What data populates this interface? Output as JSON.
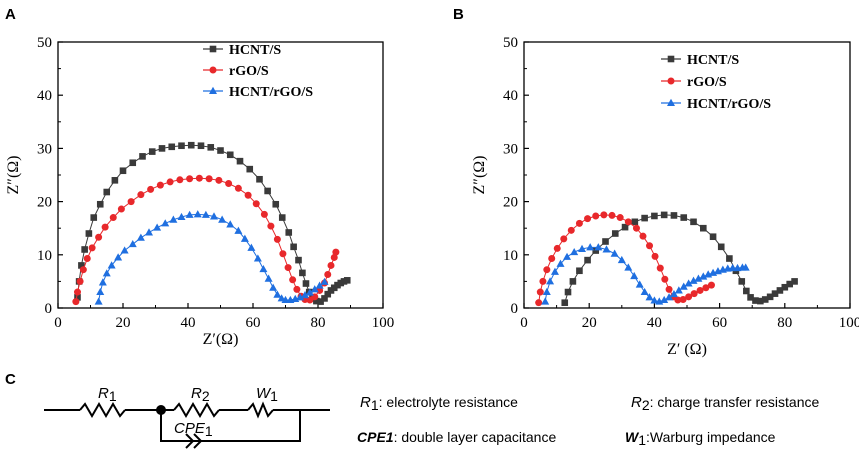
{
  "panels": {
    "A": "A",
    "B": "B",
    "C": "C"
  },
  "colors": {
    "HCNT/S": "#3a3a3a",
    "rGO/S": "#e8282b",
    "HCNT/rGO/S": "#1f6fe0"
  },
  "chart_data": [
    {
      "panel": "A",
      "type": "scatter",
      "xlabel": "Z′(Ω)",
      "ylabel": "Z″(Ω)",
      "xlim": [
        0,
        100
      ],
      "ylim": [
        0,
        50
      ],
      "xticks": [
        "0",
        "20",
        "40",
        "60",
        "80",
        "100"
      ],
      "yticks": [
        "0",
        "10",
        "20",
        "30",
        "40",
        "50"
      ],
      "legend_position": "top-right",
      "series": [
        {
          "name": "HCNT/S",
          "marker": "square",
          "points": [
            [
              6,
              2
            ],
            [
              6.5,
              5
            ],
            [
              7.2,
              8
            ],
            [
              8.2,
              11
            ],
            [
              9.5,
              14
            ],
            [
              11,
              17
            ],
            [
              13,
              19.5
            ],
            [
              15,
              21.8
            ],
            [
              17.5,
              24
            ],
            [
              20,
              25.8
            ],
            [
              23,
              27.3
            ],
            [
              26,
              28.5
            ],
            [
              29,
              29.4
            ],
            [
              32,
              30
            ],
            [
              35,
              30.3
            ],
            [
              38,
              30.5
            ],
            [
              41,
              30.6
            ],
            [
              44,
              30.5
            ],
            [
              47,
              30.2
            ],
            [
              50,
              29.6
            ],
            [
              53,
              28.8
            ],
            [
              56,
              27.6
            ],
            [
              59,
              26.1
            ],
            [
              62,
              24.2
            ],
            [
              64.5,
              22
            ],
            [
              67,
              19.5
            ],
            [
              69,
              17
            ],
            [
              71,
              14.2
            ],
            [
              72.5,
              11.5
            ],
            [
              74,
              9
            ],
            [
              75.2,
              6.6
            ],
            [
              76.3,
              4.6
            ],
            [
              77.3,
              3
            ],
            [
              78.3,
              1.8
            ],
            [
              79.5,
              1.3
            ],
            [
              80.8,
              1.2
            ],
            [
              82,
              1.8
            ],
            [
              83,
              2.6
            ],
            [
              84,
              3.3
            ],
            [
              85,
              3.8
            ],
            [
              86,
              4.3
            ],
            [
              87,
              4.7
            ],
            [
              88,
              5
            ],
            [
              89,
              5.2
            ]
          ]
        },
        {
          "name": "rGO/S",
          "marker": "circle",
          "points": [
            [
              5.5,
              1.2
            ],
            [
              6,
              3
            ],
            [
              6.8,
              5
            ],
            [
              7.8,
              7.2
            ],
            [
              9,
              9.3
            ],
            [
              10.5,
              11.3
            ],
            [
              12.5,
              13.3
            ],
            [
              14.5,
              15.2
            ],
            [
              17,
              17
            ],
            [
              19.5,
              18.6
            ],
            [
              22.5,
              20
            ],
            [
              25.5,
              21.3
            ],
            [
              28.5,
              22.3
            ],
            [
              31.5,
              23.1
            ],
            [
              34.5,
              23.7
            ],
            [
              37.5,
              24.1
            ],
            [
              40.5,
              24.3
            ],
            [
              43.5,
              24.4
            ],
            [
              46.5,
              24.3
            ],
            [
              49.5,
              24
            ],
            [
              52.5,
              23.4
            ],
            [
              55.5,
              22.5
            ],
            [
              58.5,
              21.2
            ],
            [
              61,
              19.6
            ],
            [
              63.5,
              17.6
            ],
            [
              65.5,
              15.4
            ],
            [
              67.5,
              12.9
            ],
            [
              69.2,
              10.2
            ],
            [
              70.8,
              7.6
            ],
            [
              72.2,
              5.3
            ],
            [
              73.5,
              3.5
            ],
            [
              74.8,
              2.2
            ],
            [
              76,
              1.6
            ],
            [
              77.5,
              1.5
            ],
            [
              79,
              2.1
            ],
            [
              80.5,
              3.3
            ],
            [
              82,
              4.7
            ],
            [
              83,
              6.3
            ],
            [
              84,
              8
            ],
            [
              85,
              9.5
            ],
            [
              85.5,
              10.5
            ]
          ]
        },
        {
          "name": "HCNT/rGO/S",
          "marker": "triangle",
          "points": [
            [
              12.5,
              1.2
            ],
            [
              13,
              3
            ],
            [
              13.8,
              4.8
            ],
            [
              15,
              6.5
            ],
            [
              16.5,
              8
            ],
            [
              18.5,
              9.5
            ],
            [
              20.5,
              10.8
            ],
            [
              23,
              12
            ],
            [
              25.5,
              13.2
            ],
            [
              28,
              14.2
            ],
            [
              30.5,
              15.1
            ],
            [
              33,
              15.9
            ],
            [
              35.5,
              16.6
            ],
            [
              38,
              17.1
            ],
            [
              40.5,
              17.5
            ],
            [
              43,
              17.6
            ],
            [
              45.5,
              17.5
            ],
            [
              48,
              17.2
            ],
            [
              50.5,
              16.6
            ],
            [
              53,
              15.7
            ],
            [
              55.5,
              14.5
            ],
            [
              57.5,
              13
            ],
            [
              59.5,
              11.3
            ],
            [
              61.5,
              9.3
            ],
            [
              63.2,
              7.3
            ],
            [
              64.8,
              5.5
            ],
            [
              66.2,
              3.8
            ],
            [
              67.5,
              2.5
            ],
            [
              68.8,
              1.8
            ],
            [
              70,
              1.5
            ],
            [
              71.5,
              1.5
            ],
            [
              73,
              1.7
            ],
            [
              74.5,
              2
            ],
            [
              76,
              2.4
            ],
            [
              77.5,
              2.9
            ],
            [
              79,
              3.5
            ],
            [
              80.5,
              4.2
            ],
            [
              82,
              4.9
            ]
          ]
        }
      ]
    },
    {
      "panel": "B",
      "type": "scatter",
      "xlabel": "Z′ (Ω)",
      "ylabel": "Z″(Ω)",
      "xlim": [
        0,
        100
      ],
      "ylim": [
        0,
        50
      ],
      "xticks": [
        "0",
        "20",
        "40",
        "60",
        "80",
        "100"
      ],
      "yticks": [
        "0",
        "10",
        "20",
        "30",
        "40",
        "50"
      ],
      "legend_position": "top-right",
      "series": [
        {
          "name": "HCNT/S",
          "marker": "square",
          "points": [
            [
              12.5,
              1
            ],
            [
              13.5,
              3
            ],
            [
              15,
              5
            ],
            [
              17,
              7
            ],
            [
              19.5,
              9
            ],
            [
              22,
              10.8
            ],
            [
              25,
              12.5
            ],
            [
              28,
              14
            ],
            [
              31,
              15.2
            ],
            [
              34,
              16.2
            ],
            [
              37,
              16.9
            ],
            [
              40,
              17.3
            ],
            [
              43,
              17.5
            ],
            [
              46,
              17.4
            ],
            [
              49,
              17
            ],
            [
              52,
              16.2
            ],
            [
              55,
              15
            ],
            [
              58,
              13.4
            ],
            [
              60.5,
              11.5
            ],
            [
              63,
              9.3
            ],
            [
              65,
              7
            ],
            [
              66.8,
              5
            ],
            [
              68.2,
              3.2
            ],
            [
              69.5,
              2
            ],
            [
              71,
              1.4
            ],
            [
              72.5,
              1.3
            ],
            [
              74,
              1.6
            ],
            [
              75.5,
              2.1
            ],
            [
              77,
              2.7
            ],
            [
              78.5,
              3.3
            ],
            [
              80,
              3.9
            ],
            [
              81.5,
              4.5
            ],
            [
              83,
              5
            ]
          ]
        },
        {
          "name": "rGO/S",
          "marker": "circle",
          "points": [
            [
              4.5,
              1
            ],
            [
              5,
              3
            ],
            [
              5.8,
              5
            ],
            [
              7,
              7.2
            ],
            [
              8.5,
              9.3
            ],
            [
              10.2,
              11.2
            ],
            [
              12.2,
              13
            ],
            [
              14.5,
              14.6
            ],
            [
              17,
              15.9
            ],
            [
              19.5,
              16.8
            ],
            [
              22,
              17.3
            ],
            [
              24.5,
              17.5
            ],
            [
              27,
              17.4
            ],
            [
              29.5,
              17
            ],
            [
              32,
              16.2
            ],
            [
              34.5,
              15
            ],
            [
              36.5,
              13.5
            ],
            [
              38.5,
              11.7
            ],
            [
              40.2,
              9.7
            ],
            [
              41.8,
              7.5
            ],
            [
              43.2,
              5.4
            ],
            [
              44.5,
              3.5
            ],
            [
              45.8,
              2.1
            ],
            [
              47.2,
              1.5
            ],
            [
              48.8,
              1.6
            ],
            [
              50.5,
              2.1
            ],
            [
              52.2,
              2.7
            ],
            [
              54,
              3.3
            ],
            [
              55.8,
              3.8
            ],
            [
              57.5,
              4.3
            ]
          ]
        },
        {
          "name": "HCNT/rGO/S",
          "marker": "triangle",
          "points": [
            [
              6.5,
              1.2
            ],
            [
              7,
              3
            ],
            [
              8,
              5
            ],
            [
              9.5,
              6.8
            ],
            [
              11.2,
              8.3
            ],
            [
              13.2,
              9.6
            ],
            [
              15.4,
              10.5
            ],
            [
              17.8,
              11.1
            ],
            [
              20.3,
              11.4
            ],
            [
              22.8,
              11.4
            ],
            [
              25.3,
              11
            ],
            [
              27.8,
              10.2
            ],
            [
              30,
              9
            ],
            [
              32,
              7.6
            ],
            [
              33.8,
              6
            ],
            [
              35.5,
              4.4
            ],
            [
              37,
              3
            ],
            [
              38.5,
              2
            ],
            [
              40,
              1.4
            ],
            [
              41.5,
              1.2
            ],
            [
              43,
              1.5
            ],
            [
              44.5,
              2
            ],
            [
              46,
              2.6
            ],
            [
              47.5,
              3.3
            ],
            [
              49,
              4
            ],
            [
              50.5,
              4.6
            ],
            [
              52,
              5.1
            ],
            [
              53.5,
              5.5
            ],
            [
              55,
              5.9
            ],
            [
              56.5,
              6.3
            ],
            [
              58,
              6.6
            ],
            [
              59.5,
              6.9
            ],
            [
              61,
              7.2
            ],
            [
              62.5,
              7.4
            ],
            [
              64,
              7.5
            ],
            [
              65.5,
              7.5
            ],
            [
              67,
              7.6
            ],
            [
              68,
              7.6
            ]
          ]
        }
      ]
    }
  ],
  "circuit": {
    "r1": {
      "letter": "R",
      "sub": "1"
    },
    "r2": {
      "letter": "R",
      "sub": "2"
    },
    "w1": {
      "letter": "W",
      "sub": "1"
    },
    "cpe1": {
      "letter": "CPE",
      "sub": "1"
    }
  },
  "descriptions": {
    "r1": {
      "symbol": "R",
      "sub": "1",
      "text": ": electrolyte resistance"
    },
    "r2": {
      "symbol": "R",
      "sub": "2",
      "text": ": charge transfer resistance"
    },
    "cpe1": {
      "symbol": "CPE1",
      "text": ": double layer capacitance"
    },
    "w1": {
      "symbol": "W",
      "sub": "1",
      "text": ":Warburg impedance"
    }
  }
}
